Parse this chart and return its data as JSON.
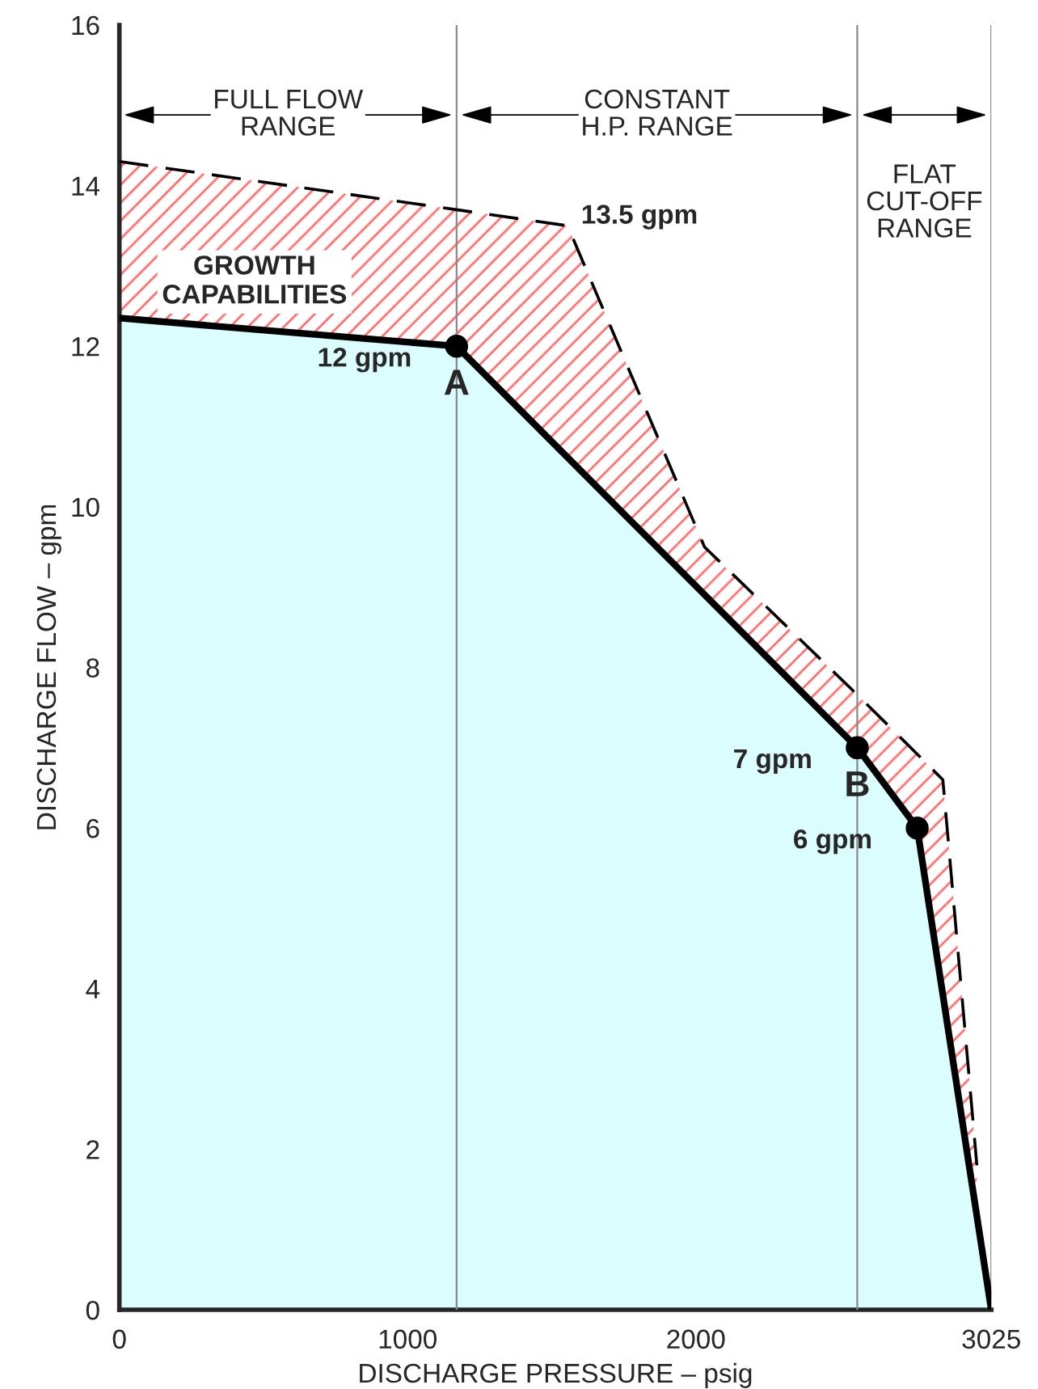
{
  "chart_data": {
    "type": "area",
    "xlabel": "DISCHARGE PRESSURE – psig",
    "ylabel": "DISCHARGE FLOW – gpm",
    "xlim": [
      0,
      3025
    ],
    "ylim": [
      0,
      16
    ],
    "xticks": [
      0,
      1000,
      2000,
      3025
    ],
    "yticks": [
      0,
      2,
      4,
      6,
      8,
      10,
      12,
      14,
      16
    ],
    "grid": false,
    "legend": false,
    "series": [
      {
        "color": "#dcfdfd",
        "x": [
          0,
          1170,
          2560,
          2768,
          3025
        ],
        "values": [
          12.35,
          12,
          7,
          6,
          0
        ]
      },
      {
        "type": "scatter",
        "color": "#000000",
        "marker": "circle",
        "x": [
          1170,
          2560,
          2768
        ],
        "values": [
          12,
          7,
          6
        ]
      },
      {
        "type": "line",
        "color": "#000000",
        "line_style": "dashed",
        "marker": "none",
        "x": [
          0,
          1170,
          1555,
          2030,
          2560,
          2678,
          2768,
          2857,
          2975
        ],
        "values": [
          14.3,
          13.7,
          13.5,
          9.5,
          7.66,
          7.24,
          6.92,
          6.6,
          1.8
        ],
        "lower": [
          12.35,
          12,
          10.6,
          8.9,
          7,
          6.43,
          6,
          3.92,
          1.17
        ],
        "upper": [
          14.3,
          13.7,
          13.5,
          9.5,
          7.66,
          7.24,
          6.92,
          6.6,
          1.8
        ]
      }
    ],
    "ref_lines": [
      {
        "axis": "x",
        "value": 1170,
        "color": "#888888"
      },
      {
        "axis": "x",
        "value": 2560,
        "color": "#888888"
      },
      {
        "axis": "x",
        "value": 3025,
        "color": "#888888"
      }
    ],
    "annotations": [
      "FULL FLOW\nRANGE",
      "CONSTANT\nH.P. RANGE",
      "FLAT\nCUT-OFF\nRANGE",
      "GROWTH\nCAPABILITIES",
      {
        "text": "13.5 gpm",
        "x": 1555,
        "y": 13.5
      },
      {
        "text": "12 gpm",
        "x": 1170,
        "y": 12
      },
      {
        "text": "A",
        "x": 1170,
        "y": 12
      },
      {
        "text": "7 gpm",
        "x": 2560,
        "y": 7
      },
      {
        "text": "B",
        "x": 2560,
        "y": 7
      },
      {
        "text": "6 gpm",
        "x": 2768,
        "y": 6
      }
    ]
  }
}
